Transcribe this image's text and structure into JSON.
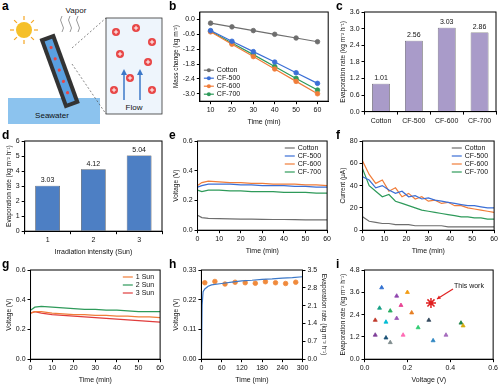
{
  "diagram": {
    "panel": "a",
    "labels": {
      "vapor": "Vapor",
      "seawater": "Seawater",
      "flow": "Flow"
    }
  },
  "chart_data": [
    {
      "panel": "b",
      "type": "line",
      "x_label": "Time (min)",
      "y_label": "Mass change (kg m⁻²)",
      "x": [
        10,
        20,
        30,
        40,
        50,
        60
      ],
      "series": [
        {
          "name": "Cotton",
          "color": "#6e6e6e",
          "marker": "circle",
          "values": [
            -0.15,
            -0.3,
            -0.45,
            -0.6,
            -0.75,
            -0.9
          ]
        },
        {
          "name": "CF-500",
          "color": "#3b6fd6",
          "marker": "circle",
          "values": [
            -0.45,
            -0.88,
            -1.3,
            -1.72,
            -2.15,
            -2.58
          ]
        },
        {
          "name": "CF-600",
          "color": "#f07d3a",
          "marker": "circle",
          "values": [
            -0.5,
            -1.0,
            -1.5,
            -2.0,
            -2.5,
            -3.0
          ]
        },
        {
          "name": "CF-700",
          "color": "#2e9a5a",
          "marker": "circle",
          "values": [
            -0.48,
            -0.95,
            -1.42,
            -1.9,
            -2.38,
            -2.85
          ]
        }
      ],
      "xlim": [
        5,
        65
      ],
      "xticks": [
        10,
        20,
        30,
        40,
        50,
        60
      ],
      "ylim": [
        -3.3,
        0.3
      ],
      "yticks": [
        {
          "value": -3,
          "label": "-3.0"
        },
        -2.4,
        -1.8,
        -1.2,
        -0.6,
        {
          "value": 0,
          "label": "0.0"
        }
      ],
      "legend": "lower left",
      "grid": false
    },
    {
      "panel": "c",
      "type": "bar",
      "y_label": "Evaporation rate (kg m⁻² h⁻¹)",
      "categories": [
        "Cotton",
        "CF-500",
        "CF-600",
        "CF-700"
      ],
      "values": [
        1.01,
        2.56,
        3.03,
        2.86
      ],
      "color": "#a99bc9",
      "ylim": [
        0,
        3.6
      ],
      "yticks": [
        {
          "value": 0,
          "label": "0.0"
        },
        0.6,
        1.2,
        1.8,
        2.4,
        {
          "value": 3,
          "label": "3.0"
        },
        3.6
      ],
      "data_labels": true,
      "grid": false
    },
    {
      "panel": "d",
      "type": "bar",
      "x_label": "Irradiation intensity (Sun)",
      "y_label": "Evaporation rate (kg m⁻² h⁻¹)",
      "categories": [
        "1",
        "2",
        "3"
      ],
      "values": [
        3.03,
        4.12,
        5.04
      ],
      "color": "#4d7fc4",
      "ylim": [
        0,
        6
      ],
      "yticks": [
        0,
        1,
        2,
        3,
        4,
        5,
        6
      ],
      "data_labels": true,
      "grid": false
    },
    {
      "panel": "e",
      "type": "line",
      "x_label": "Time (min)",
      "y_label": "Voltage (V)",
      "x": [
        0,
        2,
        5,
        10,
        15,
        20,
        25,
        30,
        35,
        40,
        45,
        50,
        55,
        60
      ],
      "series": [
        {
          "name": "Cotton",
          "color": "#6e6e6e",
          "marker": "none",
          "values": [
            0.1,
            0.085,
            0.08,
            0.078,
            0.076,
            0.075,
            0.074,
            0.073,
            0.072,
            0.072,
            0.071,
            0.07,
            0.07,
            0.07
          ]
        },
        {
          "name": "CF-500",
          "color": "#3b6fd6",
          "marker": "none",
          "values": [
            0.29,
            0.3,
            0.31,
            0.31,
            0.31,
            0.305,
            0.305,
            0.3,
            0.3,
            0.3,
            0.295,
            0.295,
            0.29,
            0.29
          ]
        },
        {
          "name": "CF-600",
          "color": "#f07d3a",
          "marker": "none",
          "values": [
            0.3,
            0.32,
            0.33,
            0.325,
            0.32,
            0.32,
            0.315,
            0.315,
            0.31,
            0.31,
            0.31,
            0.305,
            0.305,
            0.3
          ]
        },
        {
          "name": "CF-700",
          "color": "#2e9a5a",
          "marker": "none",
          "values": [
            0.27,
            0.26,
            0.27,
            0.27,
            0.265,
            0.265,
            0.26,
            0.26,
            0.26,
            0.255,
            0.255,
            0.255,
            0.25,
            0.25
          ]
        }
      ],
      "xlim": [
        0,
        60
      ],
      "xticks": [
        0,
        10,
        20,
        30,
        40,
        50,
        60
      ],
      "ylim": [
        0,
        0.6
      ],
      "yticks": [
        {
          "value": 0,
          "label": "0.0"
        },
        0.2,
        0.4,
        0.6
      ],
      "legend": "upper right",
      "grid": false
    },
    {
      "panel": "f",
      "type": "line",
      "x_label": "Time (min)",
      "y_label": "Current (μA)",
      "x": [
        0,
        3,
        6,
        9,
        12,
        15,
        18,
        21,
        24,
        27,
        30,
        33,
        36,
        39,
        42,
        45,
        48,
        51,
        54,
        57,
        60
      ],
      "series": [
        {
          "name": "Cotton",
          "color": "#6e6e6e",
          "marker": "none",
          "values": [
            12,
            8,
            7,
            6,
            6,
            5,
            5,
            5,
            4,
            4,
            4,
            4,
            4,
            3,
            3,
            3,
            3,
            3,
            3,
            3,
            3
          ]
        },
        {
          "name": "CF-500",
          "color": "#3b6fd6",
          "marker": "none",
          "values": [
            48,
            45,
            38,
            40,
            36,
            33,
            35,
            30,
            31,
            28,
            29,
            27,
            26,
            25,
            24,
            23,
            22,
            22,
            21,
            20,
            20
          ]
        },
        {
          "name": "CF-600",
          "color": "#f07d3a",
          "marker": "none",
          "values": [
            62,
            50,
            42,
            45,
            35,
            38,
            30,
            33,
            28,
            30,
            26,
            27,
            24,
            25,
            22,
            22,
            20,
            19,
            18,
            17,
            16
          ]
        },
        {
          "name": "CF-700",
          "color": "#2e9a5a",
          "marker": "none",
          "values": [
            55,
            40,
            35,
            30,
            32,
            26,
            24,
            22,
            20,
            18,
            17,
            16,
            15,
            14,
            13,
            12,
            12,
            11,
            11,
            10,
            10
          ]
        }
      ],
      "xlim": [
        0,
        60
      ],
      "xticks": [
        0,
        10,
        20,
        30,
        40,
        50,
        60
      ],
      "ylim": [
        0,
        80
      ],
      "yticks": [
        0,
        20,
        40,
        60,
        80
      ],
      "legend": "upper right",
      "grid": false
    },
    {
      "panel": "g",
      "type": "line",
      "x_label": "Time (min)",
      "y_label": "Voltage (V)",
      "x": [
        0,
        2,
        5,
        10,
        15,
        20,
        25,
        30,
        35,
        40,
        45,
        50,
        55,
        60
      ],
      "series": [
        {
          "name": "1 Sun",
          "color": "#f07d3a",
          "marker": "none",
          "values": [
            0.31,
            0.32,
            0.32,
            0.31,
            0.305,
            0.3,
            0.3,
            0.295,
            0.295,
            0.29,
            0.29,
            0.285,
            0.285,
            0.28
          ]
        },
        {
          "name": "2 Sun",
          "color": "#2e9a5a",
          "marker": "none",
          "values": [
            0.33,
            0.35,
            0.355,
            0.35,
            0.345,
            0.34,
            0.335,
            0.335,
            0.33,
            0.33,
            0.325,
            0.32,
            0.32,
            0.32
          ]
        },
        {
          "name": "3 Sun",
          "color": "#e03c3c",
          "marker": "none",
          "values": [
            0.31,
            0.32,
            0.31,
            0.3,
            0.295,
            0.29,
            0.285,
            0.28,
            0.275,
            0.27,
            0.265,
            0.26,
            0.255,
            0.25
          ]
        }
      ],
      "xlim": [
        0,
        60
      ],
      "xticks": [
        0,
        10,
        20,
        30,
        40,
        50,
        60
      ],
      "ylim": [
        0,
        0.6
      ],
      "yticks": [
        {
          "value": 0,
          "label": "0.0"
        },
        0.2,
        0.4,
        0.6
      ],
      "legend": "upper right",
      "grid": false
    },
    {
      "panel": "h",
      "type": "line",
      "x_label": "Time (min)",
      "y_label": "Voltage (V)",
      "y2_label": "Evaporation rate (kg m⁻² h⁻¹)",
      "series": [
        {
          "color": "#3c78c8",
          "marker": "none",
          "x": [
            0,
            2,
            5,
            10,
            20,
            30,
            60,
            90,
            120,
            150,
            180,
            210,
            240,
            270,
            300
          ],
          "values": [
            0,
            0.2,
            0.25,
            0.26,
            0.27,
            0.275,
            0.28,
            0.285,
            0.29,
            0.292,
            0.295,
            0.297,
            0.3,
            0.302,
            0.305
          ]
        },
        {
          "type": "scatter",
          "axis": "y2",
          "color": "#f08a3c",
          "marker": "circle",
          "x": [
            10,
            40,
            70,
            100,
            130,
            160,
            190,
            220,
            250,
            280
          ],
          "values": [
            3.0,
            3.05,
            2.95,
            3.02,
            3.0,
            2.98,
            3.04,
            3.0,
            2.97,
            3.02
          ]
        }
      ],
      "xlim": [
        0,
        300
      ],
      "xticks": [
        0,
        60,
        120,
        180,
        240,
        300
      ],
      "ylim": [
        0,
        0.33
      ],
      "yticks": [
        {
          "value": 0,
          "label": "0.00"
        },
        0.11,
        0.22,
        0.33
      ],
      "y2lim": [
        0,
        3.5
      ],
      "y2ticks": [
        {
          "value": 0,
          "label": "0.0"
        },
        0.7,
        1.4,
        2.1,
        2.8,
        3.5
      ],
      "grid": false
    },
    {
      "panel": "i",
      "type": "scatter",
      "x_label": "Voltage (V)",
      "y_label": "Evaporation rate (kg m⁻² h⁻¹)",
      "series": [
        {
          "marker": "triangle",
          "x": [
            0.08,
            0.15,
            0.2,
            0.07,
            0.12,
            0.17,
            0.22,
            0.05,
            0.1,
            0.15,
            0.25,
            0.3,
            0.45,
            0.46,
            0.05,
            0.1,
            0.18,
            0.32,
            0.38,
            0.12
          ],
          "values": [
            3.85,
            3.4,
            3.6,
            2.75,
            2.6,
            2.9,
            2.5,
            2.1,
            2.0,
            2.2,
            1.7,
            2.1,
            1.95,
            1.8,
            1.3,
            1.15,
            1.3,
            1.0,
            1.3,
            0.9
          ],
          "colors": [
            "#2f6fd0",
            "#8e44ad",
            "#f39c12",
            "#16a085",
            "#27ae60",
            "#e84393",
            "#e67e22",
            "#c0392b",
            "#00bcd4",
            "#9b59b6",
            "#2ecc71",
            "#34495e",
            "#1e8449",
            "#d4ac0d",
            "#7d3c98",
            "#1a5276",
            "#ff69b4",
            "#2e86c1",
            "#a569bd",
            "#7f8c8d"
          ]
        },
        {
          "marker": "star",
          "color": "#e02020",
          "x": [
            0.31
          ],
          "values": [
            3.03
          ]
        }
      ],
      "annotation": "This work",
      "xlim": [
        0,
        0.6
      ],
      "xticks": [
        {
          "value": 0,
          "label": "0.0"
        },
        0.2,
        0.4,
        0.6
      ],
      "ylim": [
        0,
        4.8
      ],
      "yticks": [
        {
          "value": 0,
          "label": "0.0"
        },
        1.2,
        2.4,
        3.6,
        4.8
      ],
      "grid": false
    }
  ]
}
